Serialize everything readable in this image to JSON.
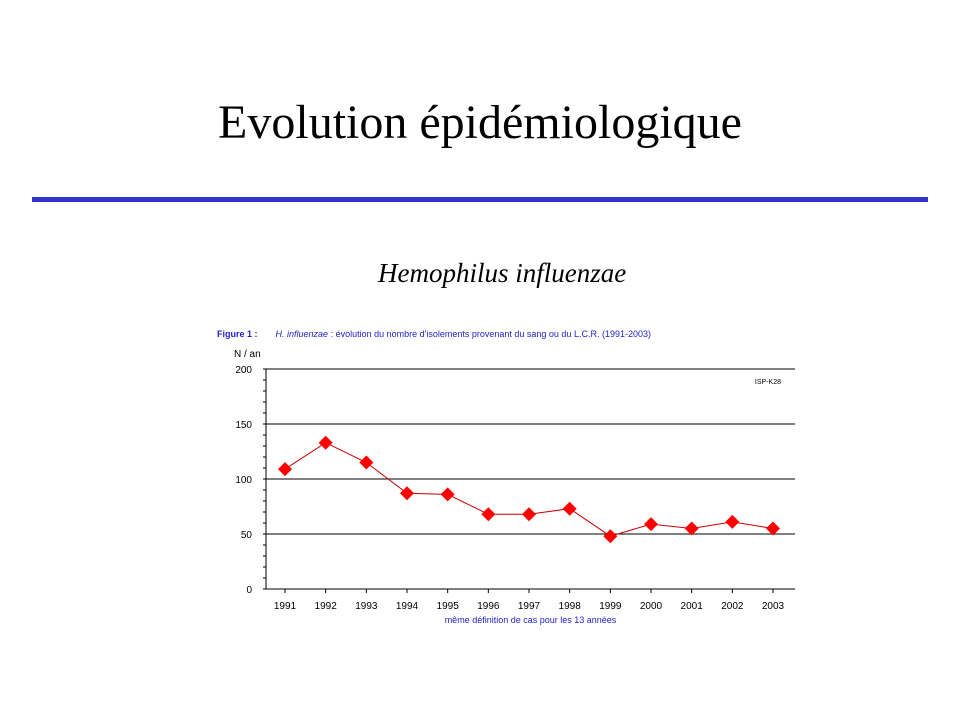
{
  "slide": {
    "title": "Evolution épidémiologique",
    "subtitle": "Hemophilus influenzae"
  },
  "figure": {
    "label": "Figure 1 :",
    "organism": "H. influenzae",
    "caption": " : évolution du nombre d'isolements provenant du sang ou du L.C.R. (1991-2003)",
    "watermark": "ISP-K28"
  },
  "colors": {
    "rule": "#3333cc",
    "series": "#ff0000",
    "line": "#cc0000",
    "caption": "#2222cc"
  },
  "chart_data": {
    "type": "line",
    "ylabel": "N / an",
    "xlabel": "même définition de cas pour les 13 années",
    "ylim": [
      0,
      200
    ],
    "yticks": [
      0,
      50,
      100,
      150,
      200
    ],
    "grid": true,
    "categories": [
      "1991",
      "1992",
      "1993",
      "1994",
      "1995",
      "1996",
      "1997",
      "1998",
      "1999",
      "2000",
      "2001",
      "2002",
      "2003"
    ],
    "values": [
      109,
      133,
      115,
      87,
      86,
      68,
      68,
      73,
      48,
      59,
      55,
      61,
      55
    ],
    "marker": "diamond"
  }
}
